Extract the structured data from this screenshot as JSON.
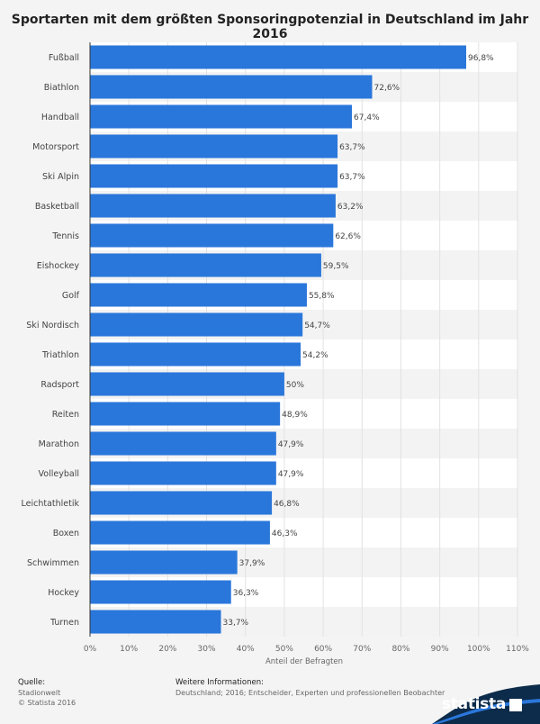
{
  "title": "Sportarten mit dem größten Sponsoringpotenzial in Deutschland im Jahr 2016",
  "chart_data": {
    "type": "bar",
    "orientation": "horizontal",
    "title": "Sportarten mit dem größten Sponsoringpotenzial in Deutschland im Jahr 2016",
    "xlabel": "Anteil der Befragten",
    "ylabel": "",
    "xlim": [
      0,
      110
    ],
    "ticks": [
      "0%",
      "10%",
      "20%",
      "30%",
      "40%",
      "50%",
      "60%",
      "70%",
      "80%",
      "90%",
      "100%",
      "110%"
    ],
    "grid": true,
    "bar_color": "#2a77db",
    "categories": [
      "Fußball",
      "Biathlon",
      "Handball",
      "Motorsport",
      "Ski Alpin",
      "Basketball",
      "Tennis",
      "Eishockey",
      "Golf",
      "Ski Nordisch",
      "Triathlon",
      "Radsport",
      "Reiten",
      "Marathon",
      "Volleyball",
      "Leichtathletik",
      "Boxen",
      "Schwimmen",
      "Hockey",
      "Turnen"
    ],
    "values": [
      96.8,
      72.6,
      67.4,
      63.7,
      63.7,
      63.2,
      62.6,
      59.5,
      55.8,
      54.7,
      54.2,
      50,
      48.9,
      47.9,
      47.9,
      46.8,
      46.3,
      37.9,
      36.3,
      33.7
    ],
    "labels": [
      "96,8%",
      "72,6%",
      "67,4%",
      "63,7%",
      "63,7%",
      "63,2%",
      "62,6%",
      "59,5%",
      "55,8%",
      "54,7%",
      "54,2%",
      "50%",
      "48,9%",
      "47,9%",
      "47,9%",
      "46,8%",
      "46,3%",
      "37,9%",
      "36,3%",
      "33,7%"
    ]
  },
  "footer": {
    "source_heading": "Quelle:",
    "source": "Stadionwelt",
    "copyright": "© Statista 2016",
    "info_heading": "Weitere Informationen:",
    "info": "Deutschland; 2016; Entscheider, Experten und professionellen Beobachter"
  },
  "logo": {
    "text": "statista"
  }
}
